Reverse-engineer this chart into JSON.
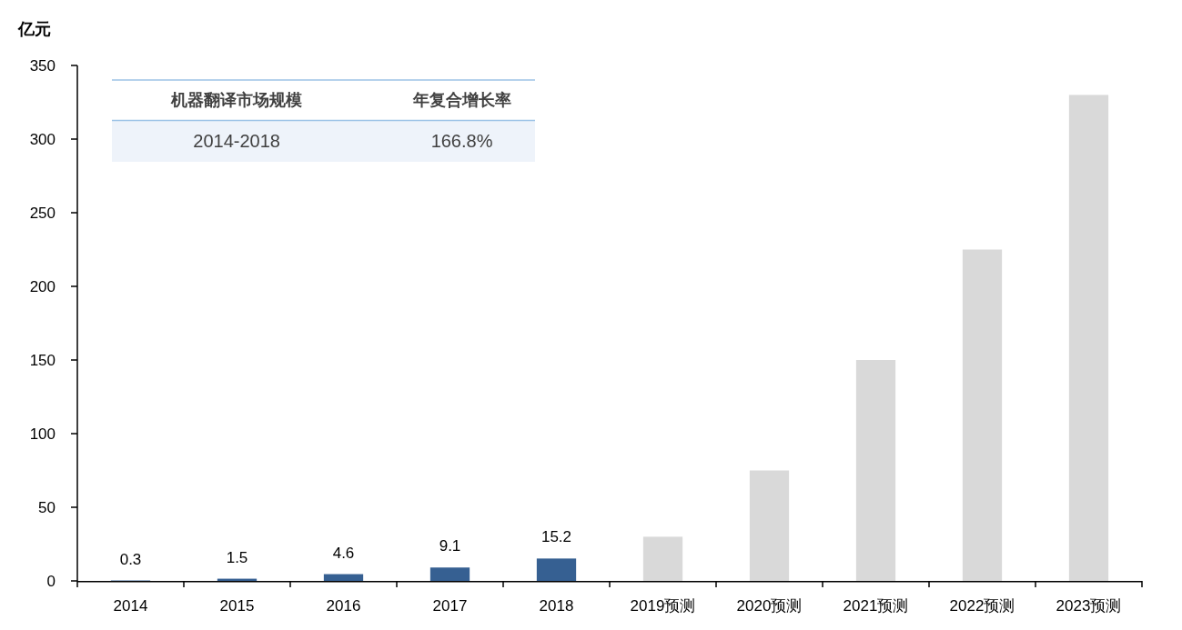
{
  "chart_data": {
    "type": "bar",
    "ylabel": "亿元",
    "categories": [
      "2014",
      "2015",
      "2016",
      "2017",
      "2018",
      "2019预测",
      "2020预测",
      "2021预测",
      "2022预测",
      "2023预测"
    ],
    "values": [
      0.3,
      1.5,
      4.6,
      9.1,
      15.2,
      30,
      75,
      150,
      225,
      330
    ],
    "colors": [
      "#366092",
      "#366092",
      "#366092",
      "#366092",
      "#366092",
      "#d9d9d9",
      "#d9d9d9",
      "#d9d9d9",
      "#d9d9d9",
      "#d9d9d9"
    ],
    "value_labels": [
      "0.3",
      "1.5",
      "4.6",
      "9.1",
      "15.2",
      null,
      null,
      null,
      null,
      null
    ],
    "ylim": [
      0,
      350
    ],
    "yticks": [
      0,
      50,
      100,
      150,
      200,
      250,
      300,
      350
    ],
    "annotations": [
      "机器翻译市场规模",
      "年复合增长率",
      "2014-2018",
      "166.8%"
    ]
  }
}
